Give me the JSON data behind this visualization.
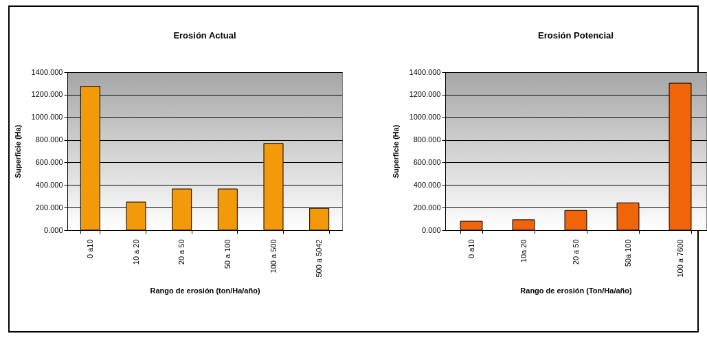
{
  "chart_data": [
    {
      "type": "bar",
      "title": "Erosión Actual",
      "xlabel": "Rango de erosión (ton/Ha/año)",
      "ylabel": "Superficie     (Ha)",
      "categories": [
        "0 a10",
        "10 a 20",
        "20 a 50",
        "50 a 100",
        "100 a 500",
        "500 a 5042"
      ],
      "values": [
        1275,
        249,
        365,
        365,
        769,
        194
      ],
      "color": "#f39a0a",
      "ylim": [
        0,
        1400
      ],
      "yticks": [
        {
          "value": 0,
          "label": "0.000"
        },
        {
          "value": 200,
          "label": "200.000"
        },
        {
          "value": 400,
          "label": "400.000"
        },
        {
          "value": 600,
          "label": "600.000"
        },
        {
          "value": 800,
          "label": "800.000"
        },
        {
          "value": 1000,
          "label": "1000.000"
        },
        {
          "value": 1200,
          "label": "1200.000"
        },
        {
          "value": 1400,
          "label": "1400.000"
        }
      ],
      "grid": "y"
    },
    {
      "type": "bar",
      "title": "Erosión Potencial",
      "xlabel": "Rango de erosión (Ton/Ha/año)",
      "ylabel": "Superficie     (Ha)",
      "categories": [
        "0 a10",
        "10a 20",
        "20 a 50",
        "50a 100",
        "100 a 7600"
      ],
      "values": [
        79,
        92,
        175,
        242,
        1302
      ],
      "color": "#f0640a",
      "ylim": [
        0,
        1400
      ],
      "yticks": [
        {
          "value": 0,
          "label": "0.000"
        },
        {
          "value": 200,
          "label": "200.000"
        },
        {
          "value": 400,
          "label": "400.000"
        },
        {
          "value": 600,
          "label": "600.000"
        },
        {
          "value": 800,
          "label": "800.000"
        },
        {
          "value": 1000,
          "label": "1000.000"
        },
        {
          "value": 1200,
          "label": "1200.000"
        },
        {
          "value": 1400,
          "label": "1400.000"
        }
      ],
      "grid": "y"
    }
  ]
}
